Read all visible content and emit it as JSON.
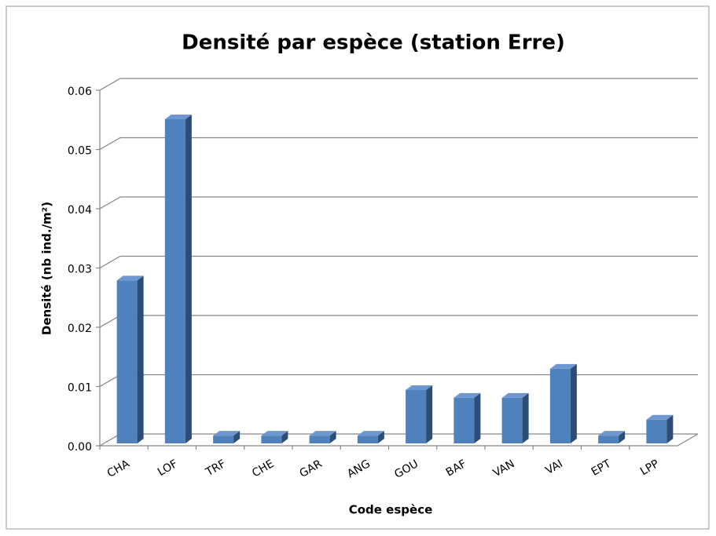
{
  "chart_data": {
    "type": "bar3d",
    "title": "Densité par espèce (station Erre)",
    "xlabel": "Code espèce",
    "ylabel": "Densité (nb ind./m²)",
    "categories": [
      "CHA",
      "LOF",
      "TRF",
      "CHE",
      "GAR",
      "ANG",
      "GOU",
      "BAF",
      "VAN",
      "VAI",
      "EPT",
      "LPP"
    ],
    "values": [
      0.0275,
      0.0547,
      0.0013,
      0.0013,
      0.0013,
      0.0013,
      0.009,
      0.0077,
      0.0077,
      0.0126,
      0.0013,
      0.004
    ],
    "color": "#4f81bd",
    "ylim": [
      0,
      0.06
    ],
    "yticks": [
      {
        "value": 0,
        "label": "0.00"
      },
      0.01,
      0.02,
      0.03,
      0.04,
      0.05,
      0.06
    ],
    "grid": true
  }
}
